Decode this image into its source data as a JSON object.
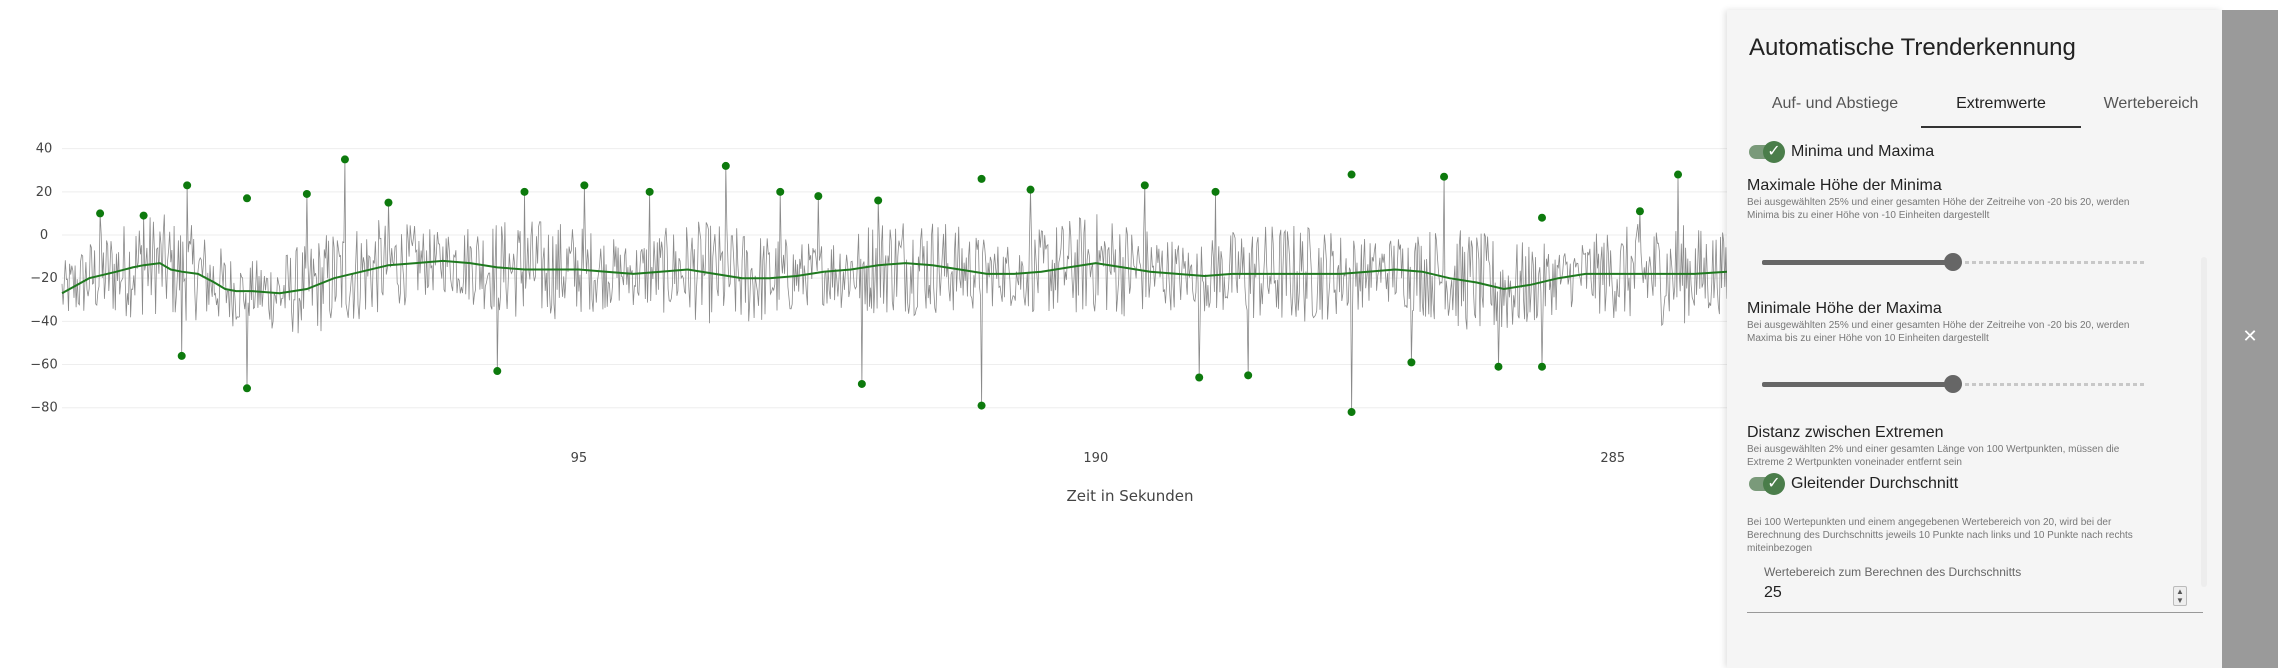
{
  "chart_data": {
    "type": "line",
    "xlabel": "Zeit in Sekunden",
    "x_ticks": [
      95,
      190,
      285
    ],
    "y_ticks": [
      40,
      20,
      0,
      -20,
      -40,
      -60,
      -80
    ],
    "xlim": [
      0,
      306
    ],
    "ylim": [
      -88,
      44
    ],
    "grid": true,
    "raw_series": {
      "color": "#8a8a8a"
    },
    "moving_average": {
      "color": "#1f7a1f",
      "points": [
        [
          0,
          -27
        ],
        [
          5,
          -20
        ],
        [
          10,
          -17
        ],
        [
          13,
          -15
        ],
        [
          15,
          -14
        ],
        [
          18,
          -13
        ],
        [
          20,
          -16
        ],
        [
          22,
          -17
        ],
        [
          25,
          -18
        ],
        [
          28,
          -22
        ],
        [
          30,
          -25
        ],
        [
          32,
          -26
        ],
        [
          35,
          -26
        ],
        [
          40,
          -27
        ],
        [
          45,
          -25
        ],
        [
          50,
          -20
        ],
        [
          55,
          -17
        ],
        [
          60,
          -14
        ],
        [
          65,
          -13
        ],
        [
          70,
          -12
        ],
        [
          75,
          -13
        ],
        [
          80,
          -15
        ],
        [
          85,
          -16
        ],
        [
          90,
          -16
        ],
        [
          95,
          -16
        ],
        [
          100,
          -17
        ],
        [
          105,
          -18
        ],
        [
          110,
          -17
        ],
        [
          115,
          -16
        ],
        [
          120,
          -18
        ],
        [
          125,
          -20
        ],
        [
          130,
          -20
        ],
        [
          135,
          -19
        ],
        [
          140,
          -17
        ],
        [
          145,
          -16
        ],
        [
          150,
          -14
        ],
        [
          155,
          -13
        ],
        [
          160,
          -14
        ],
        [
          165,
          -16
        ],
        [
          170,
          -18
        ],
        [
          175,
          -18
        ],
        [
          180,
          -17
        ],
        [
          185,
          -15
        ],
        [
          190,
          -13
        ],
        [
          195,
          -15
        ],
        [
          200,
          -17
        ],
        [
          205,
          -18
        ],
        [
          210,
          -19
        ],
        [
          215,
          -18
        ],
        [
          220,
          -18
        ],
        [
          225,
          -18
        ],
        [
          230,
          -18
        ],
        [
          235,
          -18
        ],
        [
          240,
          -17
        ],
        [
          245,
          -16
        ],
        [
          250,
          -17
        ],
        [
          255,
          -20
        ],
        [
          260,
          -22
        ],
        [
          265,
          -25
        ],
        [
          270,
          -23
        ],
        [
          275,
          -20
        ],
        [
          280,
          -18
        ],
        [
          285,
          -18
        ],
        [
          290,
          -18
        ],
        [
          295,
          -18
        ],
        [
          300,
          -18
        ],
        [
          306,
          -17
        ]
      ]
    },
    "maxima": {
      "color": "#0d7a0d",
      "points": [
        [
          7,
          10
        ],
        [
          15,
          9
        ],
        [
          23,
          23
        ],
        [
          34,
          17
        ],
        [
          45,
          19
        ],
        [
          52,
          35
        ],
        [
          60,
          15
        ],
        [
          85,
          20
        ],
        [
          96,
          23
        ],
        [
          108,
          20
        ],
        [
          122,
          32
        ],
        [
          132,
          20
        ],
        [
          139,
          18
        ],
        [
          150,
          16
        ],
        [
          169,
          26
        ],
        [
          178,
          21
        ],
        [
          199,
          23
        ],
        [
          212,
          20
        ],
        [
          237,
          28
        ],
        [
          254,
          27
        ],
        [
          272,
          8
        ],
        [
          290,
          11
        ],
        [
          297,
          28
        ]
      ]
    },
    "minima": {
      "color": "#0d7a0d",
      "points": [
        [
          22,
          -56
        ],
        [
          34,
          -71
        ],
        [
          80,
          -63
        ],
        [
          147,
          -69
        ],
        [
          169,
          -79
        ],
        [
          209,
          -66
        ],
        [
          218,
          -65
        ],
        [
          237,
          -82
        ],
        [
          248,
          -59
        ],
        [
          264,
          -61
        ],
        [
          272,
          -61
        ]
      ]
    }
  },
  "panel": {
    "title": "Automatische Trenderkennung",
    "tabs": [
      {
        "label": "Auf- und Abstiege",
        "active": false
      },
      {
        "label": "Extremwerte",
        "active": true
      },
      {
        "label": "Wertebereich",
        "active": false
      }
    ],
    "extrema": {
      "toggle_label": "Minima und Maxima",
      "toggle_checked": true,
      "max_minima": {
        "title": "Maximale Höhe der Minima",
        "desc": "Bei ausgewählten 25% und einer gesamten Höhe der Zeitreihe von -20 bis 20, werden Minima bis zu einer Höhe von -10 Einheiten dargestellt",
        "value_fraction": 0.5
      },
      "min_maxima": {
        "title": "Minimale Höhe der Maxima",
        "desc": "Bei ausgewählten 25% und einer gesamten Höhe der Zeitreihe von -20 bis 20, werden Maxima bis zu einer Höhe von 10 Einheiten dargestellt",
        "value_fraction": 0.5
      },
      "distance": {
        "title": "Distanz zwischen Extremen",
        "desc": "Bei ausgewählten 2% und einer gesamten Länge von 100 Wertpunkten, müssen die Extreme 2 Wertpunkten voneinader entfernt sein"
      }
    },
    "moving_average": {
      "toggle_label": "Gleitender Durchschnitt",
      "toggle_checked": true,
      "desc": "Bei 100 Wertepunkten und einem angegebenen Wertebereich von 20, wird bei der Berechnung des Durchschnitts jeweils 10 Punkte nach links und 10 Punkte nach rechts miteinbezogen",
      "input_label": "Wertebereich zum Berechnen des Durchschnitts",
      "input_value": "25"
    },
    "close_icon": "close-icon",
    "check_icon": "check-icon"
  }
}
